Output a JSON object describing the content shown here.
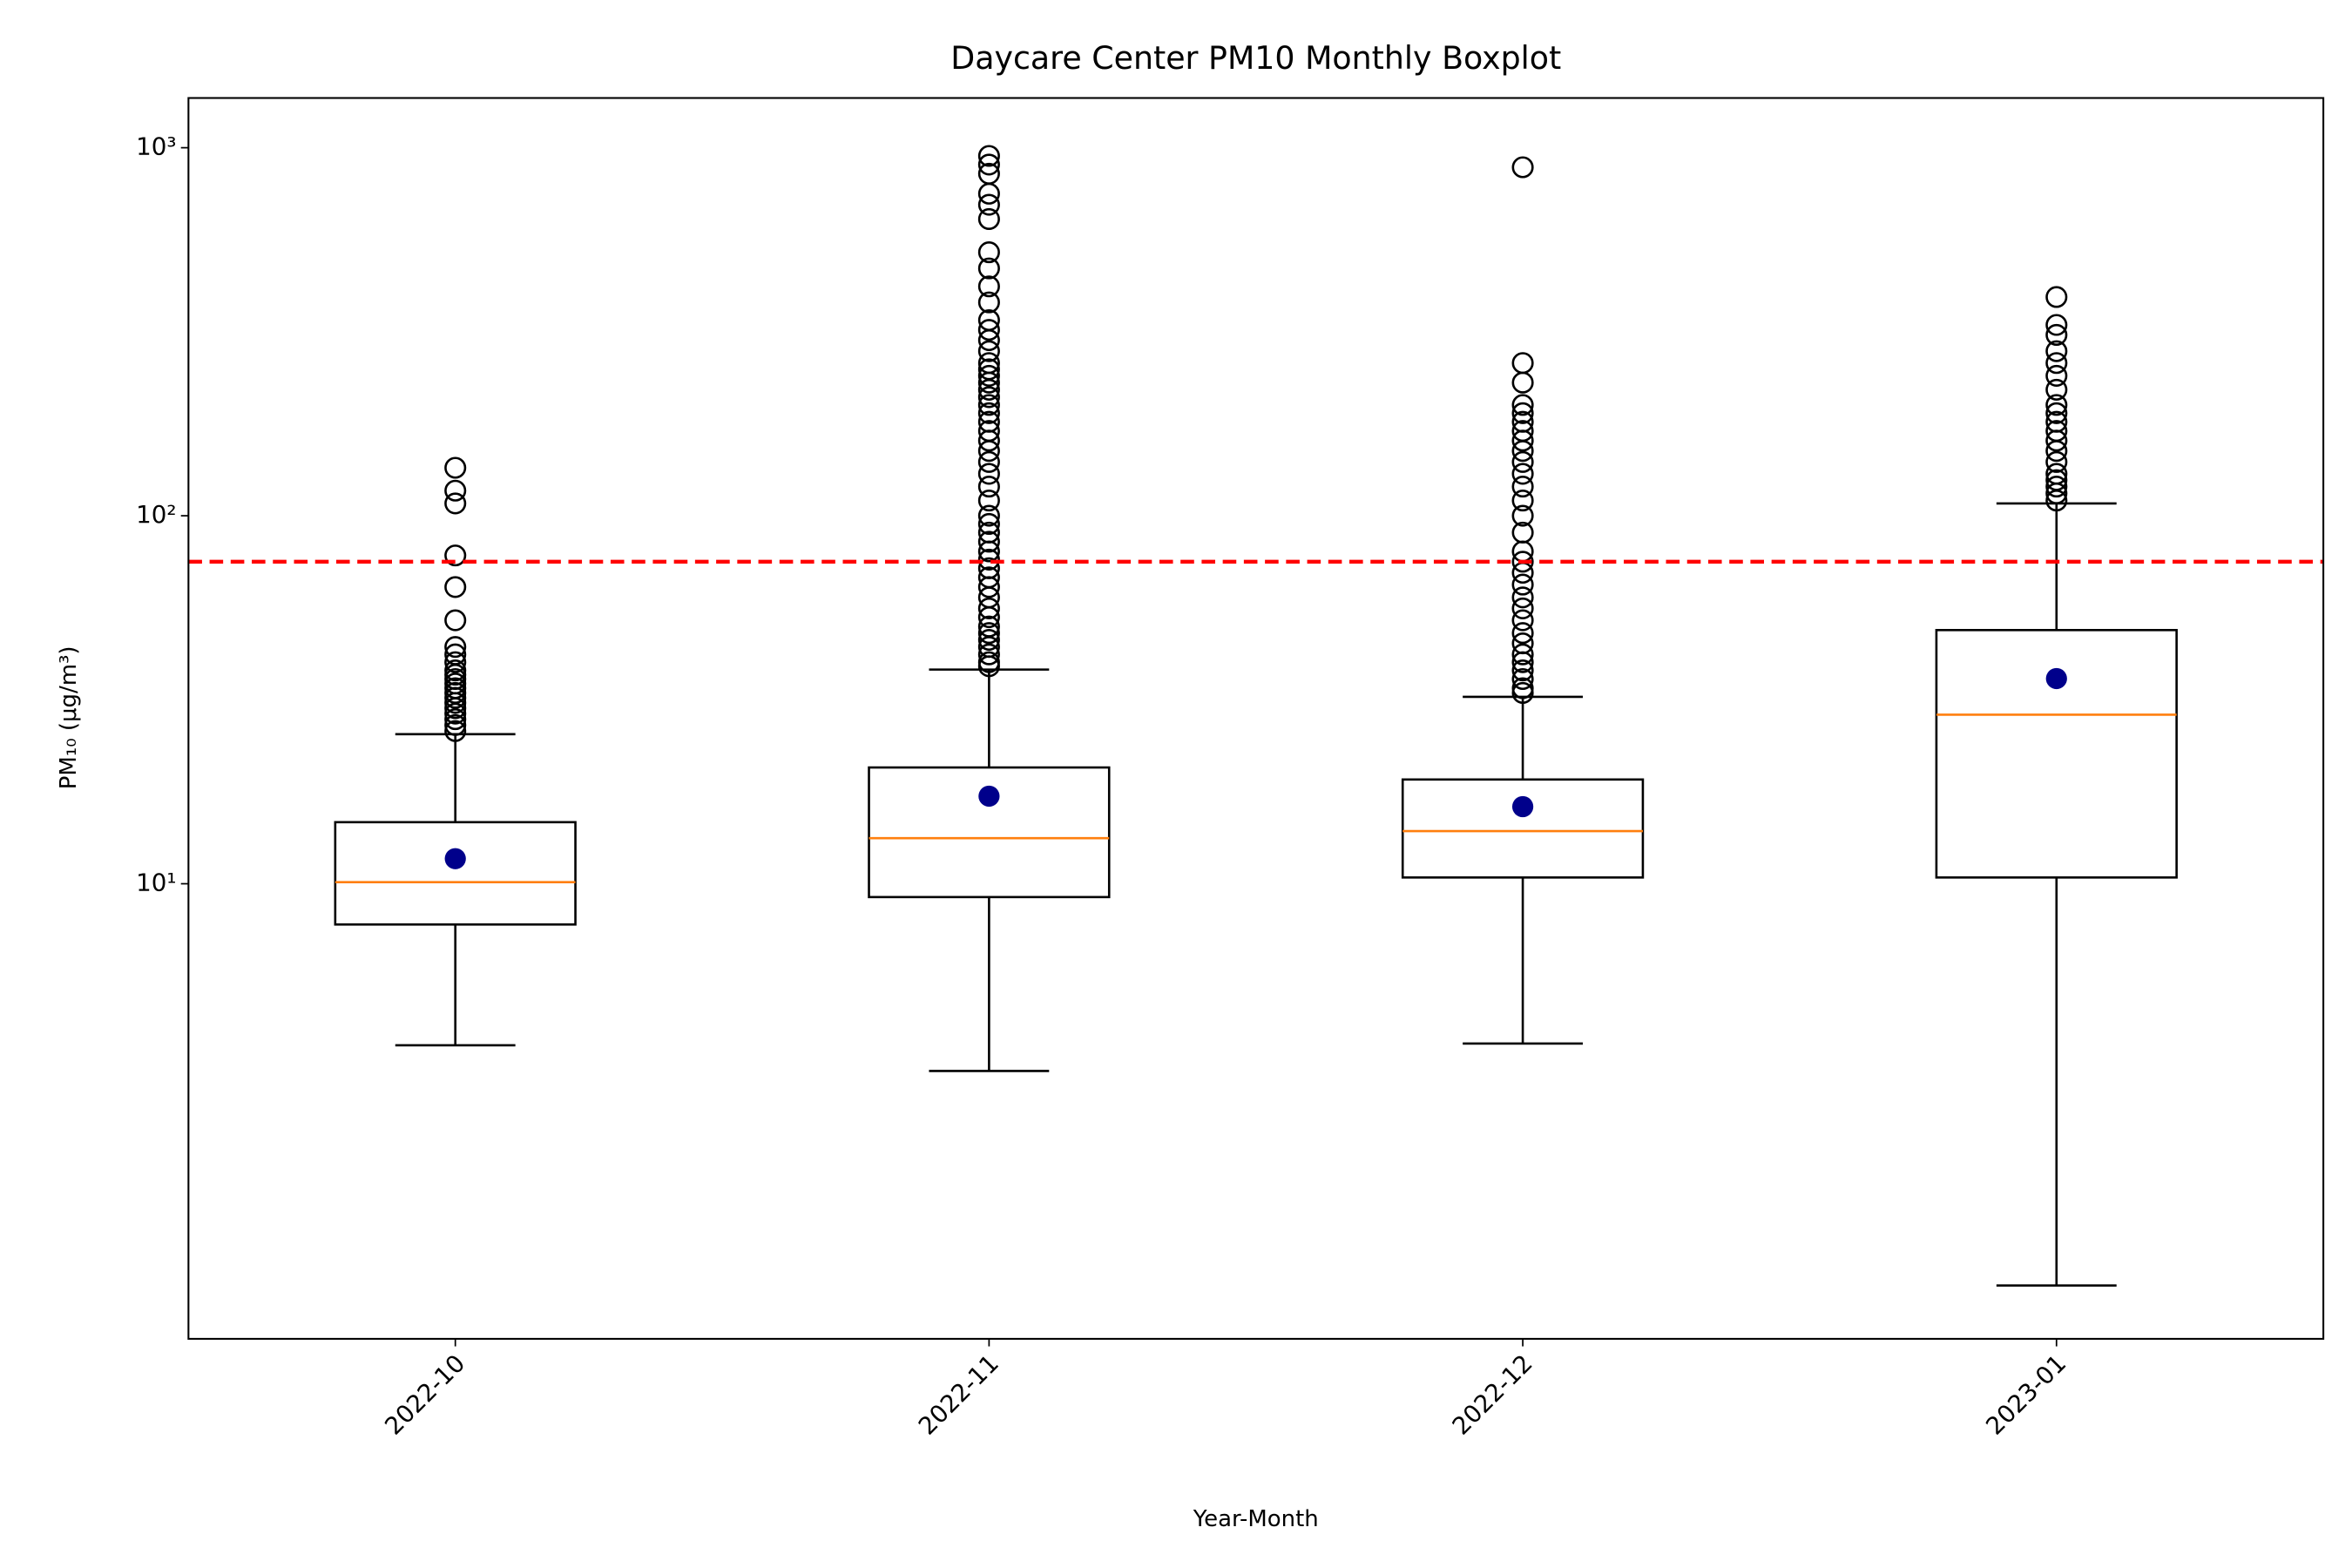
{
  "chart_data": {
    "type": "boxplot",
    "title": "Daycare Center PM10 Monthly Boxplot",
    "xlabel": "Year-Month",
    "ylabel": "PM₁₀ (μg/m³)",
    "categories": [
      "2022-10",
      "2022-11",
      "2022-12",
      "2023-01"
    ],
    "yscale": "log",
    "ylim": [
      0.58,
      1365
    ],
    "yticks": [
      {
        "value": 10,
        "label": "10¹"
      },
      {
        "value": 100,
        "label": "10²"
      },
      {
        "value": 1000,
        "label": "10³"
      }
    ],
    "box_color": "#000000",
    "median_color": "#ff7f0e",
    "mean_color": "#00008b",
    "threshold": {
      "value": 75,
      "color": "#ff0000"
    },
    "boxes": [
      {
        "whisker_low": 3.64,
        "q1": 7.75,
        "median": 10.1,
        "q3": 14.7,
        "whisker_high": 25.5,
        "mean": 11.7,
        "outliers": [
          26,
          27,
          28,
          29,
          30,
          31,
          32,
          33,
          34,
          35,
          36,
          37,
          38,
          40,
          42,
          44,
          52,
          64,
          78,
          108,
          117,
          135
        ]
      },
      {
        "whisker_low": 3.1,
        "q1": 9.2,
        "median": 13.3,
        "q3": 20.7,
        "whisker_high": 38.2,
        "mean": 17.3,
        "outliers": [
          39,
          40,
          42,
          44,
          46,
          48,
          50,
          53,
          56,
          60,
          64,
          68,
          72,
          76,
          80,
          85,
          90,
          95,
          100,
          110,
          120,
          130,
          140,
          150,
          160,
          170,
          180,
          190,
          200,
          210,
          220,
          230,
          240,
          250,
          260,
          280,
          300,
          320,
          340,
          380,
          420,
          470,
          520,
          640,
          700,
          750,
          850,
          900,
          950
        ]
      },
      {
        "whisker_low": 3.68,
        "q1": 10.4,
        "median": 13.9,
        "q3": 19.2,
        "whisker_high": 32.2,
        "mean": 16.2,
        "outliers": [
          33,
          34,
          36,
          38,
          40,
          42,
          45,
          48,
          52,
          56,
          60,
          65,
          70,
          75,
          80,
          90,
          100,
          110,
          120,
          130,
          140,
          150,
          160,
          170,
          180,
          190,
          200,
          230,
          260,
          885
        ]
      },
      {
        "whisker_low": 0.81,
        "q1": 10.4,
        "median": 28.8,
        "q3": 48.9,
        "whisker_high": 108,
        "mean": 36.1,
        "outliers": [
          110,
          115,
          120,
          125,
          130,
          140,
          150,
          160,
          170,
          180,
          190,
          200,
          220,
          240,
          260,
          280,
          310,
          330,
          393
        ]
      }
    ]
  }
}
